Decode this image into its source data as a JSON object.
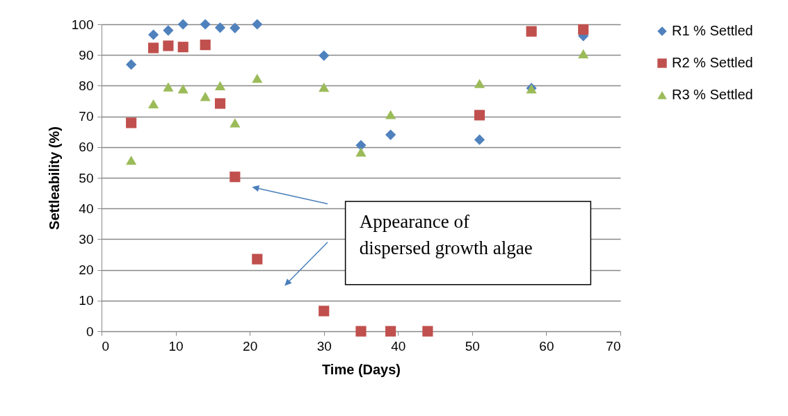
{
  "chart_data": {
    "type": "scatter",
    "xlabel": "Time (Days)",
    "ylabel": "Settleability (%)",
    "xlim": [
      0,
      70
    ],
    "xticks": [
      0,
      10,
      20,
      30,
      40,
      50,
      60,
      70
    ],
    "ylim": [
      0,
      100
    ],
    "yticks": [
      0,
      10,
      20,
      30,
      40,
      50,
      60,
      70,
      80,
      90,
      100
    ],
    "grid": "y",
    "legend": "right",
    "annotations": [
      "Appearance of dispersed growth algae"
    ],
    "series": [
      {
        "name": "R1 % Settled",
        "color": "#4f81bd",
        "marker": "diamond",
        "x": [
          4,
          7,
          9,
          11,
          14,
          16,
          18,
          21,
          30,
          35,
          39,
          51,
          58,
          65
        ],
        "values": [
          86.9,
          96.6,
          98,
          100,
          100,
          98.9,
          98.8,
          100,
          89.8,
          60.6,
          64,
          62.4,
          79.2,
          96.2
        ]
      },
      {
        "name": "R2 % Settled",
        "color": "#c0504d",
        "marker": "square",
        "x": [
          4,
          7,
          9,
          11,
          14,
          16,
          18,
          21,
          30,
          35,
          39,
          44,
          51,
          58,
          65
        ],
        "values": [
          67.9,
          92.3,
          93,
          92.6,
          93.3,
          74.2,
          50.3,
          23.5,
          6.6,
          0,
          0,
          0,
          70.4,
          97.7,
          98.3
        ]
      },
      {
        "name": "R3 % Settled",
        "color": "#9bbb59",
        "marker": "triangle",
        "x": [
          4,
          7,
          9,
          11,
          14,
          16,
          18,
          21,
          30,
          35,
          39,
          51,
          58,
          65
        ],
        "values": [
          55.7,
          74.1,
          79.6,
          79,
          76.5,
          80,
          67.9,
          82.4,
          79.5,
          58.4,
          70.6,
          80.7,
          79,
          90.4
        ]
      }
    ]
  }
}
